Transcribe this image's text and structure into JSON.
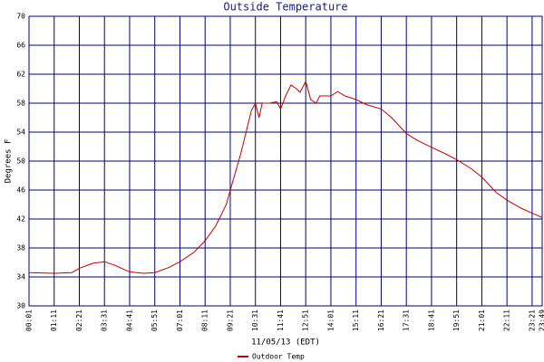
{
  "chart_data": {
    "type": "line",
    "title": "Outside Temperature",
    "xlabel": "11/05/13 (EDT)",
    "ylabel": "Degrees F",
    "x": [
      "00:01",
      "01:11",
      "02:00",
      "02:21",
      "03:00",
      "03:31",
      "04:00",
      "04:41",
      "05:20",
      "05:51",
      "06:30",
      "07:01",
      "07:40",
      "08:11",
      "08:40",
      "09:10",
      "09:21",
      "09:50",
      "10:10",
      "10:20",
      "10:31",
      "10:41",
      "10:50",
      "11:10",
      "11:30",
      "11:41",
      "11:55",
      "12:10",
      "12:25",
      "12:35",
      "12:51",
      "13:05",
      "13:20",
      "13:30",
      "14:01",
      "14:20",
      "14:40",
      "15:11",
      "15:40",
      "16:21",
      "16:50",
      "17:31",
      "18:00",
      "18:41",
      "19:20",
      "19:51",
      "20:30",
      "21:01",
      "21:40",
      "22:11",
      "22:50",
      "23:21",
      "23:49"
    ],
    "series": [
      {
        "name": "Outdoor Temp",
        "color": "#c00000",
        "values": [
          34.6,
          34.5,
          34.6,
          35.2,
          35.9,
          36.1,
          35.6,
          34.7,
          34.5,
          34.6,
          35.3,
          36.1,
          37.4,
          39,
          41,
          44,
          46,
          51,
          55,
          57,
          58,
          56,
          58,
          58,
          58.2,
          57.2,
          59,
          60.5,
          60,
          59.5,
          61,
          58.5,
          58,
          59,
          59,
          59.6,
          59,
          58.5,
          57.8,
          57.2,
          56,
          53.8,
          52.9,
          51.9,
          51,
          50.2,
          49,
          47.8,
          45.7,
          44.6,
          43.5,
          42.8,
          42.2
        ]
      }
    ],
    "xlim": [
      "00:01",
      "23:49"
    ],
    "xticks": [
      "00:01",
      "01:11",
      "02:21",
      "03:31",
      "04:41",
      "05:51",
      "07:01",
      "08:11",
      "09:21",
      "10:31",
      "11:41",
      "12:51",
      "14:01",
      "15:11",
      "16:21",
      "17:31",
      "18:41",
      "19:51",
      "21:01",
      "22:11",
      "23:21",
      "23:49"
    ],
    "ylim": [
      30,
      70
    ],
    "yticks": [
      30,
      34,
      38,
      42,
      46,
      50,
      54,
      58,
      62,
      66,
      70
    ],
    "grid": true,
    "legend": "bottom"
  }
}
